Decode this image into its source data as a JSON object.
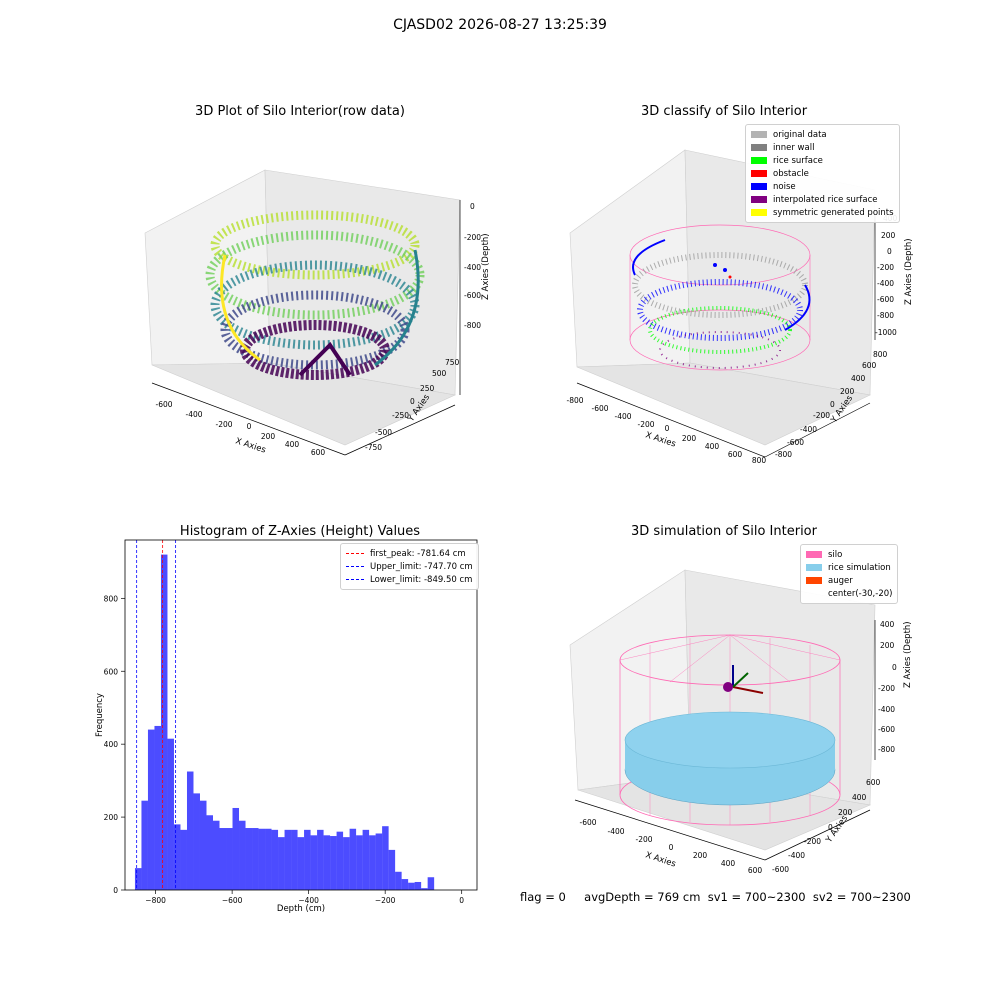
{
  "suptitle": "CJASD02 2026-08-27 13:25:39",
  "panels": {
    "raw": {
      "title": "3D Plot of Silo Interior(row data)",
      "xlabel": "X Axies",
      "ylabel": "Y Axies",
      "zlabel": "Z Axies (Depth)",
      "x_ticks": [
        "-600",
        "-400",
        "-200",
        "0",
        "200",
        "400",
        "600"
      ],
      "y_ticks": [
        "-750",
        "-500",
        "-250",
        "0",
        "250",
        "500",
        "750"
      ],
      "z_ticks": [
        "0",
        "-200",
        "-400",
        "-600",
        "-800"
      ]
    },
    "classify": {
      "title": "3D classify of Silo Interior",
      "xlabel": "X Axies",
      "ylabel": "Y Axies",
      "zlabel": "Z Axies (Depth)",
      "x_ticks": [
        "-800",
        "-600",
        "-400",
        "-200",
        "0",
        "200",
        "400",
        "600",
        "800"
      ],
      "y_ticks": [
        "-800",
        "-600",
        "-400",
        "-200",
        "0",
        "200",
        "400",
        "600",
        "800"
      ],
      "z_ticks": [
        "400",
        "200",
        "0",
        "-200",
        "-400",
        "-600",
        "-800",
        "-1000"
      ],
      "legend": [
        {
          "label": "original data",
          "color": "#b3b3b3"
        },
        {
          "label": "inner wall",
          "color": "#808080"
        },
        {
          "label": "rice surface",
          "color": "#00ff00"
        },
        {
          "label": "obstacle",
          "color": "#ff0000"
        },
        {
          "label": "noise",
          "color": "#0000ff"
        },
        {
          "label": "interpolated rice surface",
          "color": "#800080"
        },
        {
          "label": "symmetric generated points",
          "color": "#ffff00"
        }
      ]
    },
    "histogram": {
      "title": "Histogram of Z-Axies (Height) Values",
      "legend": [
        {
          "label": "first_peak: -781.64 cm",
          "color": "#ff0000"
        },
        {
          "label": "Upper_limit: -747.70 cm",
          "color": "#0000ff"
        },
        {
          "label": "Lower_limit: -849.50 cm",
          "color": "#0000ff"
        }
      ]
    },
    "simulation": {
      "title": "3D simulation of Silo Interior",
      "xlabel": "X Axies",
      "ylabel": "Y Axies",
      "zlabel": "Z Axies (Depth)",
      "x_ticks": [
        "-600",
        "-400",
        "-200",
        "0",
        "200",
        "400",
        "600"
      ],
      "y_ticks": [
        "-600",
        "-400",
        "-200",
        "0",
        "200",
        "400",
        "600"
      ],
      "z_ticks": [
        "400",
        "200",
        "0",
        "-200",
        "-400",
        "-600",
        "-800"
      ],
      "legend": [
        {
          "label": "silo",
          "color": "#ff69b4"
        },
        {
          "label": "rice simulation",
          "color": "#87ceeb"
        },
        {
          "label": "auger",
          "color": "#ff4500"
        },
        {
          "label": "center(-30,-20)",
          "color": ""
        }
      ]
    }
  },
  "footer": {
    "flag": "flag = 0",
    "stats": "avgDepth = 769 cm  sv1 = 700~2300  sv2 = 700~2300"
  },
  "chart_data": {
    "type": "bar",
    "title": "Histogram of Z-Axies (Height) Values",
    "xlabel": "Depth (cm)",
    "ylabel": "Frequency",
    "xlim": [
      -880,
      40
    ],
    "ylim": [
      0,
      960
    ],
    "x_ticks": [
      -800,
      -600,
      -400,
      -200,
      0
    ],
    "y_ticks": [
      0,
      200,
      400,
      600,
      800
    ],
    "bin_width": 17,
    "bin_start": -854,
    "color": "#0000ff",
    "values": [
      60,
      245,
      440,
      450,
      920,
      415,
      180,
      165,
      325,
      265,
      245,
      205,
      190,
      170,
      170,
      225,
      190,
      170,
      170,
      168,
      168,
      165,
      145,
      165,
      165,
      145,
      165,
      150,
      165,
      150,
      148,
      160,
      145,
      168,
      150,
      165,
      150,
      155,
      175,
      110,
      50,
      30,
      20,
      22,
      5,
      35
    ],
    "vlines": [
      {
        "name": "first_peak",
        "x": -781.64,
        "color": "#ff0000"
      },
      {
        "name": "Upper_limit",
        "x": -747.7,
        "color": "#0000ff"
      },
      {
        "name": "Lower_limit",
        "x": -849.5,
        "color": "#0000ff"
      }
    ]
  }
}
